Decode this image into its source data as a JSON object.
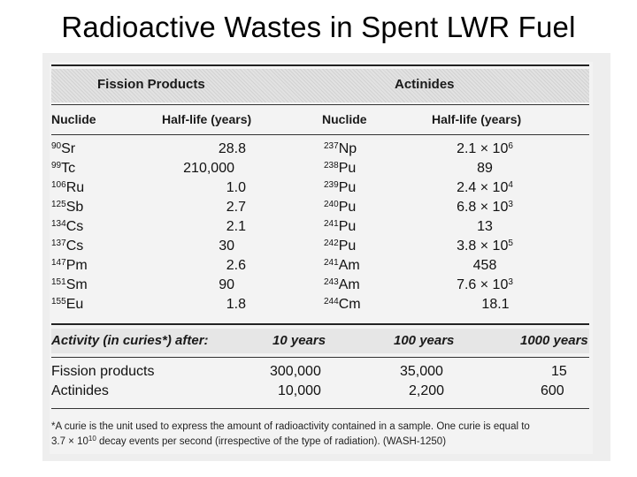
{
  "title": "Radioactive Wastes in Spent LWR Fuel",
  "groups": {
    "fission": "Fission Products",
    "actinides": "Actinides"
  },
  "columns": {
    "nuclide_left": "Nuclide",
    "halflife_left": "Half-life (years)",
    "nuclide_right": "Nuclide",
    "halflife_right": "Half-life (years)"
  },
  "fission_rows": [
    {
      "mass": "90",
      "el": "Sr",
      "hl": "28.8"
    },
    {
      "mass": "99",
      "el": "Tc",
      "hl": "210,000"
    },
    {
      "mass": "106",
      "el": "Ru",
      "hl": "1.0"
    },
    {
      "mass": "125",
      "el": "Sb",
      "hl": "2.7"
    },
    {
      "mass": "134",
      "el": "Cs",
      "hl": "2.1"
    },
    {
      "mass": "137",
      "el": "Cs",
      "hl": "30"
    },
    {
      "mass": "147",
      "el": "Pm",
      "hl": "2.6"
    },
    {
      "mass": "151",
      "el": "Sm",
      "hl": "90"
    },
    {
      "mass": "155",
      "el": "Eu",
      "hl": "1.8"
    }
  ],
  "actinide_rows": [
    {
      "mass": "237",
      "el": "Np",
      "hl_base": "2.1 × 10",
      "hl_exp": "6"
    },
    {
      "mass": "238",
      "el": "Pu",
      "hl_base": "89",
      "hl_exp": ""
    },
    {
      "mass": "239",
      "el": "Pu",
      "hl_base": "2.4 × 10",
      "hl_exp": "4"
    },
    {
      "mass": "240",
      "el": "Pu",
      "hl_base": "6.8 × 10",
      "hl_exp": "3"
    },
    {
      "mass": "241",
      "el": "Pu",
      "hl_base": "13",
      "hl_exp": ""
    },
    {
      "mass": "242",
      "el": "Pu",
      "hl_base": "3.8 × 10",
      "hl_exp": "5"
    },
    {
      "mass": "241",
      "el": "Am",
      "hl_base": "458",
      "hl_exp": ""
    },
    {
      "mass": "243",
      "el": "Am",
      "hl_base": "7.6 × 10",
      "hl_exp": "3"
    },
    {
      "mass": "244",
      "el": "Cm",
      "hl_base": "18.1",
      "hl_exp": ""
    }
  ],
  "activity": {
    "label": "Activity (in curies*) after:",
    "periods": [
      "10 years",
      "100 years",
      "1000 years"
    ],
    "rows": [
      {
        "name": "Fission products",
        "values": [
          "300,000",
          "35,000",
          "15"
        ]
      },
      {
        "name": "Actinides",
        "values": [
          "10,000",
          "2,200",
          "600"
        ]
      }
    ]
  },
  "footnote": {
    "line1": "*A curie is the unit used to express the amount of radioactivity contained in a sample. One curie is equal to",
    "line2_pre": "3.7 × 10",
    "line2_exp": "10",
    "line2_post": " decay events per second (irrespective of the type of radiation). (WASH-1250)"
  }
}
